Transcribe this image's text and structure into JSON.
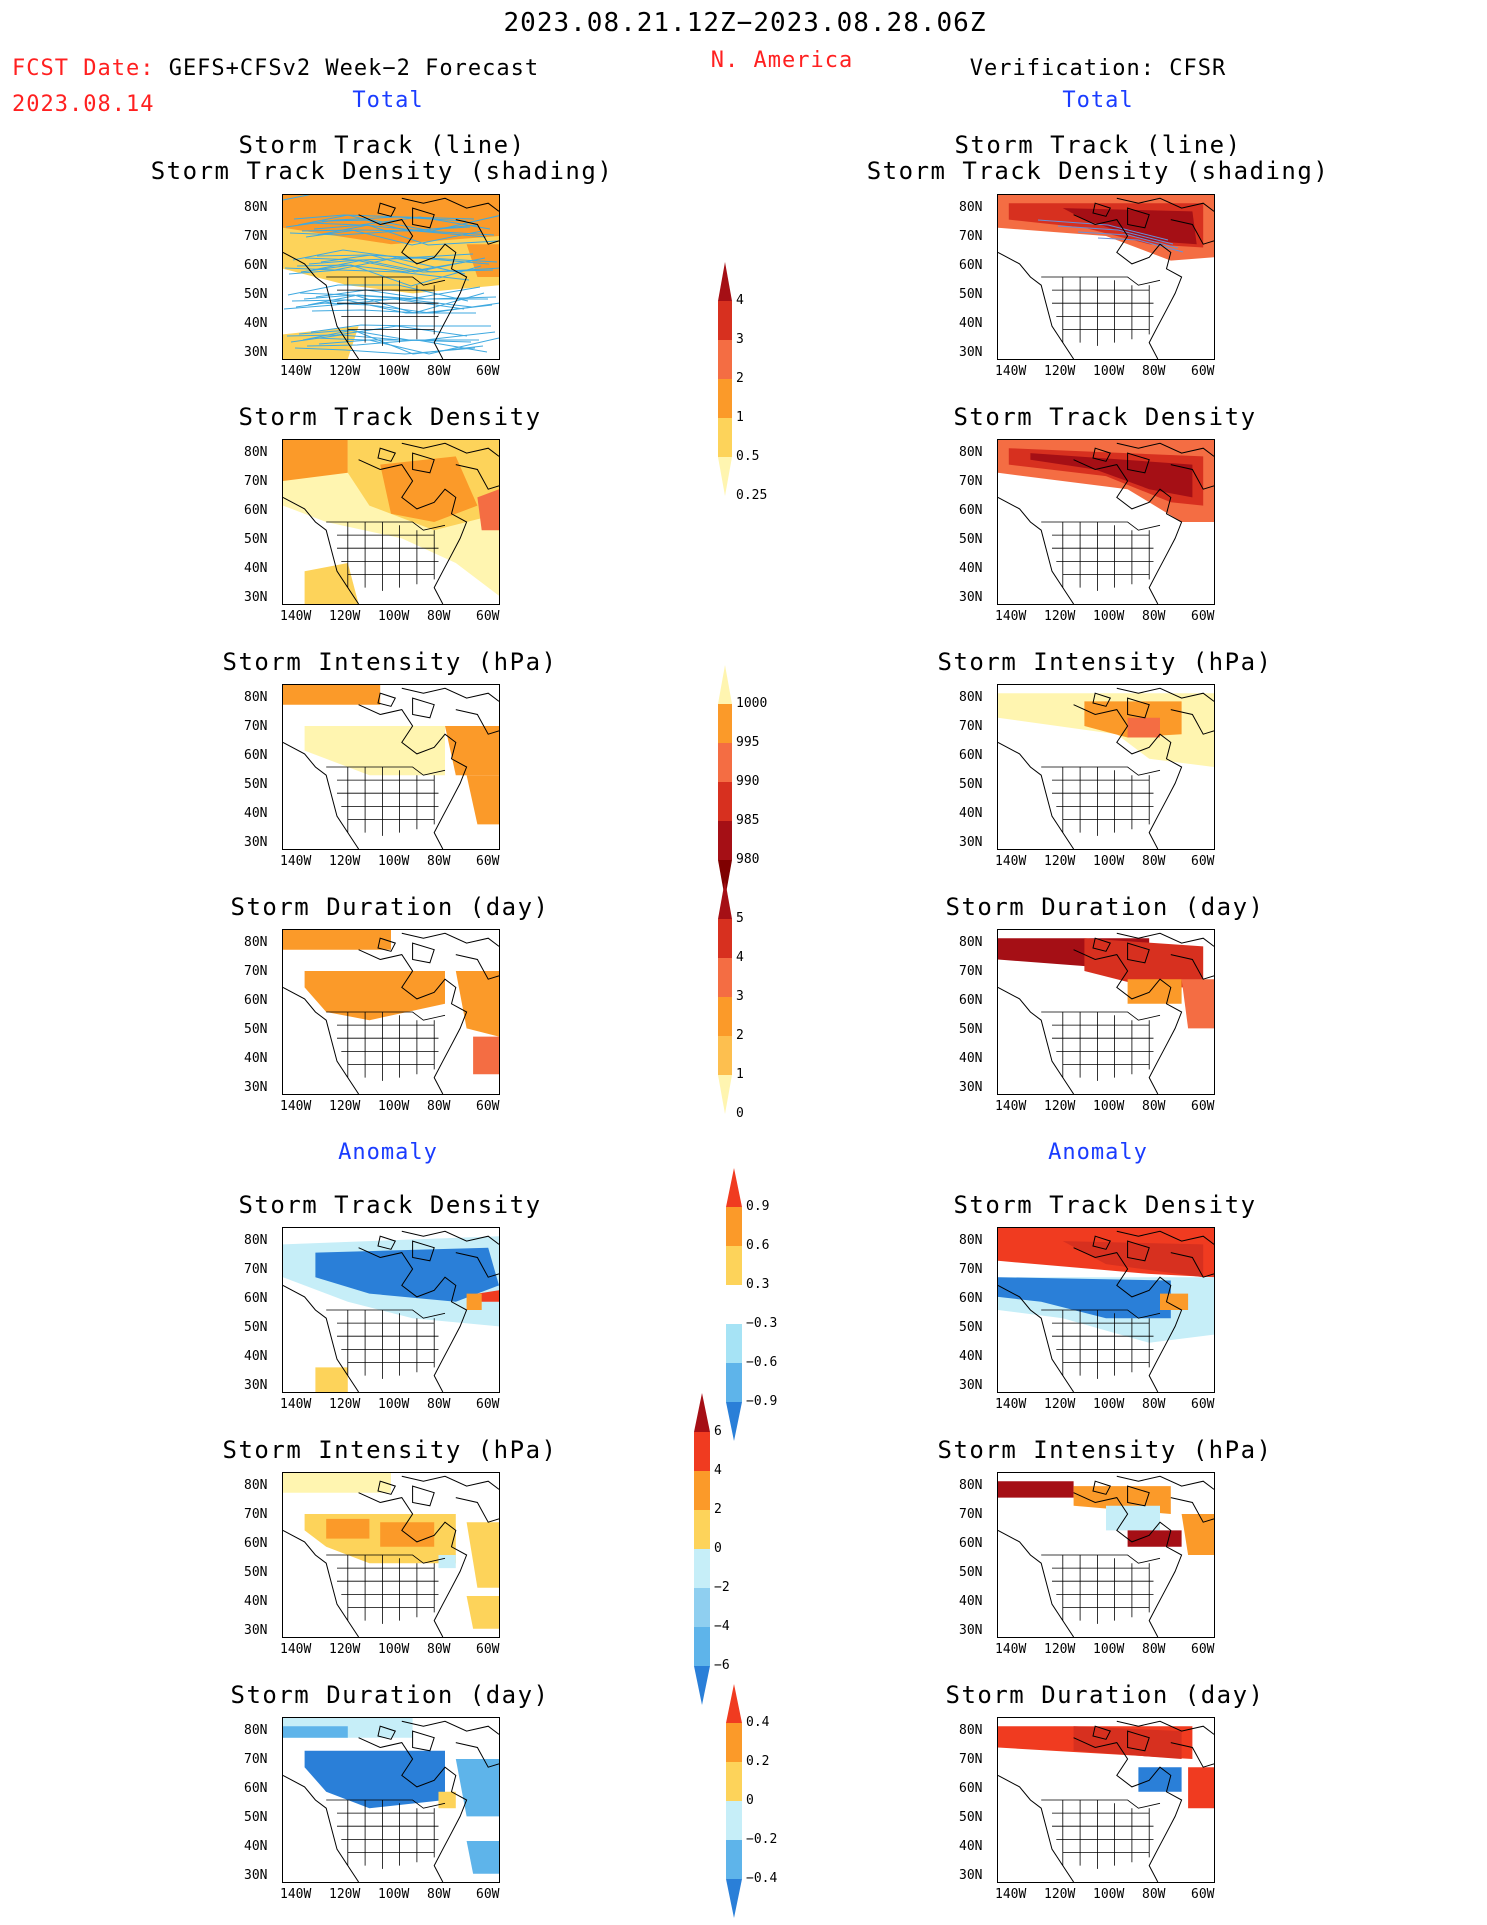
{
  "header": {
    "date_range": "2023.08.21.12Z−2023.08.28.06Z",
    "region": "N. America",
    "fcst_label": "FCST Date: GEFS+CFSv2 Week−2 Forecast",
    "fcst_date": "2023.08.14",
    "verification": "Verification: CFSR"
  },
  "sections": {
    "total_left": "Total",
    "total_right": "Total",
    "anomaly_left": "Anomaly",
    "anomaly_right": "Anomaly"
  },
  "panel_titles": {
    "track_line": "Storm Track (line)",
    "track_shading": "Storm Track Density (shading)",
    "density": "Storm Track Density",
    "intensity": "Storm Intensity (hPa)",
    "duration": "Storm Duration (day)"
  },
  "axes": {
    "lat_ticks": [
      "80N",
      "70N",
      "60N",
      "50N",
      "40N",
      "30N"
    ],
    "lon_ticks": [
      "140W",
      "120W",
      "100W",
      "80W",
      "60W"
    ]
  },
  "colorbars": {
    "density_total": {
      "labels": [
        "4",
        "3",
        "2",
        "1",
        "0.5",
        "0.25"
      ],
      "colors": [
        "#a50f15",
        "#d7301f",
        "#f46d43",
        "#fb9a29",
        "#fdd35a",
        "#fff5b0"
      ]
    },
    "intensity_total": {
      "labels": [
        "1000",
        "995",
        "990",
        "985",
        "980"
      ],
      "colors": [
        "#fff5b0",
        "#fb9a29",
        "#f46d43",
        "#d7301f",
        "#a50f15",
        "#7f0000"
      ]
    },
    "duration_total": {
      "labels": [
        "5",
        "4",
        "3",
        "2",
        "1",
        "0"
      ],
      "colors": [
        "#a50f15",
        "#d7301f",
        "#f46d43",
        "#fb9a29",
        "#fdbf4f",
        "#fff5b0"
      ]
    },
    "density_anom": {
      "labels": [
        "0.9",
        "0.6",
        "0.3",
        "−0.3",
        "−0.6",
        "−0.9"
      ],
      "colors": [
        "#f03b20",
        "#fb9a29",
        "#fdd35a",
        "#ffffff",
        "#a6e3f5",
        "#5eb4ea",
        "#2a7fd8"
      ]
    },
    "intensity_anom": {
      "labels": [
        "6",
        "4",
        "2",
        "0",
        "−2",
        "−4",
        "−6"
      ],
      "colors": [
        "#a50f15",
        "#f03b20",
        "#fb9a29",
        "#fdd35a",
        "#c6eef8",
        "#8fcff0",
        "#5eb4ea",
        "#2a7fd8"
      ]
    },
    "duration_anom": {
      "labels": [
        "0.4",
        "0.2",
        "0",
        "−0.2",
        "−0.4"
      ],
      "colors": [
        "#f03b20",
        "#fb9a29",
        "#fdd35a",
        "#c6eef8",
        "#5eb4ea",
        "#2a7fd8"
      ]
    }
  },
  "colors": {
    "red_text": "#ff2020",
    "blue_text": "#1a3cff"
  }
}
